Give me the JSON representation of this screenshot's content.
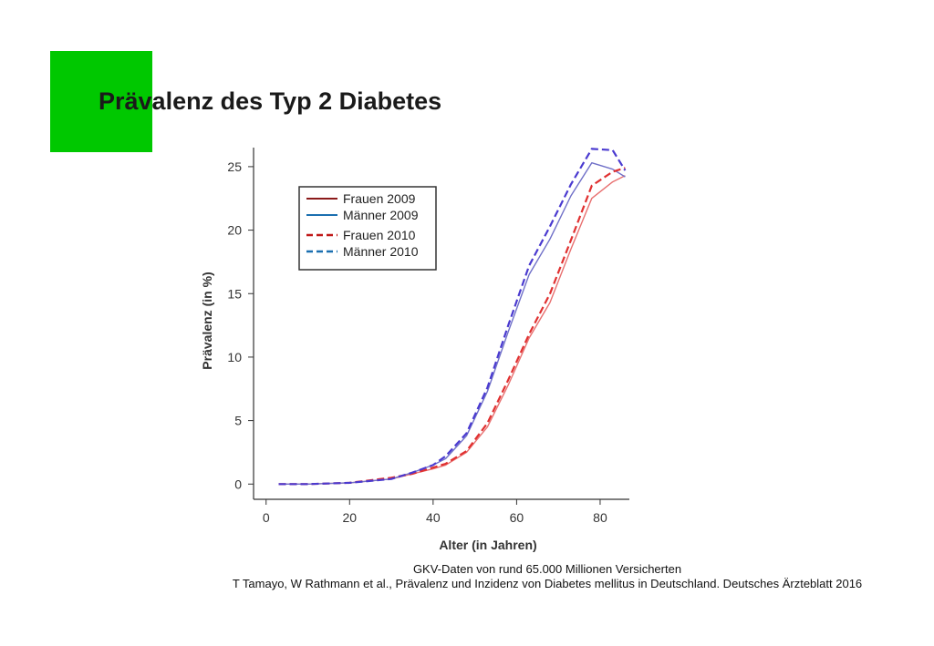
{
  "slide": {
    "title": "Prävalenz des Typ 2 Diabetes",
    "caption_line1": "GKV-Daten von rund 65.000 Millionen Versicherten",
    "caption_line2": "T Tamayo, W Rathmann et al., Prävalenz und Inzidenz von Diabetes mellitus in Deutschland. Deutsches Ärzteblatt 2016",
    "accent_color": "#00c800"
  },
  "chart_data": {
    "type": "line",
    "xlabel": "Alter (in Jahren)",
    "ylabel": "Prävalenz (in %)",
    "xlim": [
      -3,
      87
    ],
    "ylim": [
      -1.2,
      26.5
    ],
    "xticks": [
      0,
      20,
      40,
      60,
      80
    ],
    "yticks": [
      0,
      5,
      10,
      15,
      20,
      25
    ],
    "grid": false,
    "legend_position": "top-left",
    "series": [
      {
        "name": "Frauen 2009",
        "color": "#e87070",
        "dash": "solid",
        "x": [
          3,
          10,
          20,
          30,
          35,
          40,
          43,
          48,
          53,
          58,
          63,
          68,
          73,
          78,
          83,
          86
        ],
        "y": [
          0,
          0,
          0.1,
          0.4,
          0.8,
          1.2,
          1.5,
          2.5,
          4.5,
          7.8,
          11.5,
          14.3,
          18.5,
          22.5,
          23.8,
          24.3
        ]
      },
      {
        "name": "Männer 2009",
        "color": "#7070c8",
        "dash": "solid",
        "x": [
          3,
          10,
          20,
          30,
          35,
          40,
          43,
          48,
          53,
          58,
          63,
          68,
          73,
          78,
          83,
          86
        ],
        "y": [
          0,
          0,
          0.1,
          0.4,
          0.9,
          1.5,
          2.0,
          3.8,
          7.3,
          12.0,
          16.5,
          19.3,
          22.7,
          25.3,
          24.8,
          24.2
        ]
      },
      {
        "name": "Frauen 2010",
        "color": "#e03030",
        "dash": "dashed",
        "x": [
          3,
          10,
          20,
          30,
          35,
          40,
          43,
          48,
          53,
          58,
          63,
          68,
          73,
          78,
          83,
          86
        ],
        "y": [
          0,
          0,
          0.1,
          0.5,
          0.8,
          1.3,
          1.6,
          2.6,
          4.8,
          8.2,
          11.8,
          15.0,
          19.2,
          23.5,
          24.6,
          24.9
        ]
      },
      {
        "name": "Männer 2010",
        "color": "#4a3ad0",
        "dash": "dashed",
        "x": [
          3,
          10,
          20,
          30,
          35,
          40,
          43,
          48,
          53,
          58,
          63,
          68,
          73,
          78,
          83,
          86
        ],
        "y": [
          0,
          0,
          0.1,
          0.4,
          0.9,
          1.5,
          2.2,
          4.0,
          7.6,
          12.5,
          17.2,
          20.3,
          23.6,
          26.4,
          26.3,
          24.7
        ]
      }
    ],
    "legend": {
      "colors": [
        "#8b1a1a",
        "#1a6fb0",
        "#c01818",
        "#1a6fb0"
      ],
      "dashes": [
        "solid",
        "solid",
        "dashed",
        "dashed"
      ]
    }
  }
}
